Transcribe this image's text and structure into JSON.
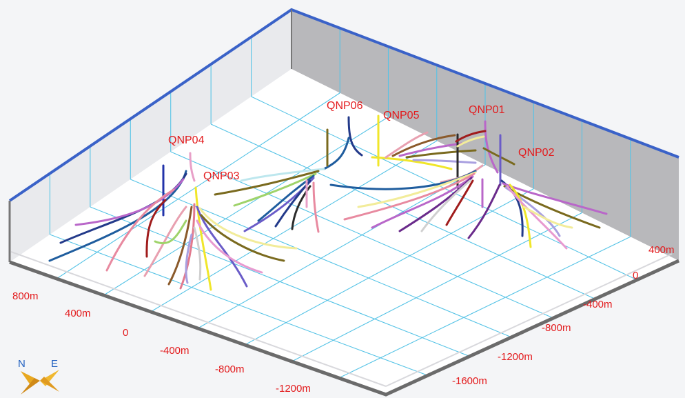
{
  "scene": {
    "x_axis": {
      "labels": [
        "800m",
        "400m",
        "0",
        "-400m",
        "-800m",
        "-1200m"
      ]
    },
    "y_axis": {
      "labels": [
        "400m",
        "0",
        "-400m",
        "-800m",
        "-1200m",
        "-1600m"
      ]
    },
    "wells": [
      "QNP06",
      "QNP05",
      "QNP01",
      "QNP04",
      "QNP03",
      "QNP02"
    ],
    "compass": {
      "north": "N",
      "east": "E"
    },
    "colors": {
      "grid": "#55c3e6",
      "wall_back": "#b9b9bc",
      "wall_left": "#e8e9ec",
      "floor": "#ffffff",
      "frame_top": "#3a62c8",
      "frame_base": "#6b6b6b",
      "label": "#e31a1c"
    }
  }
}
